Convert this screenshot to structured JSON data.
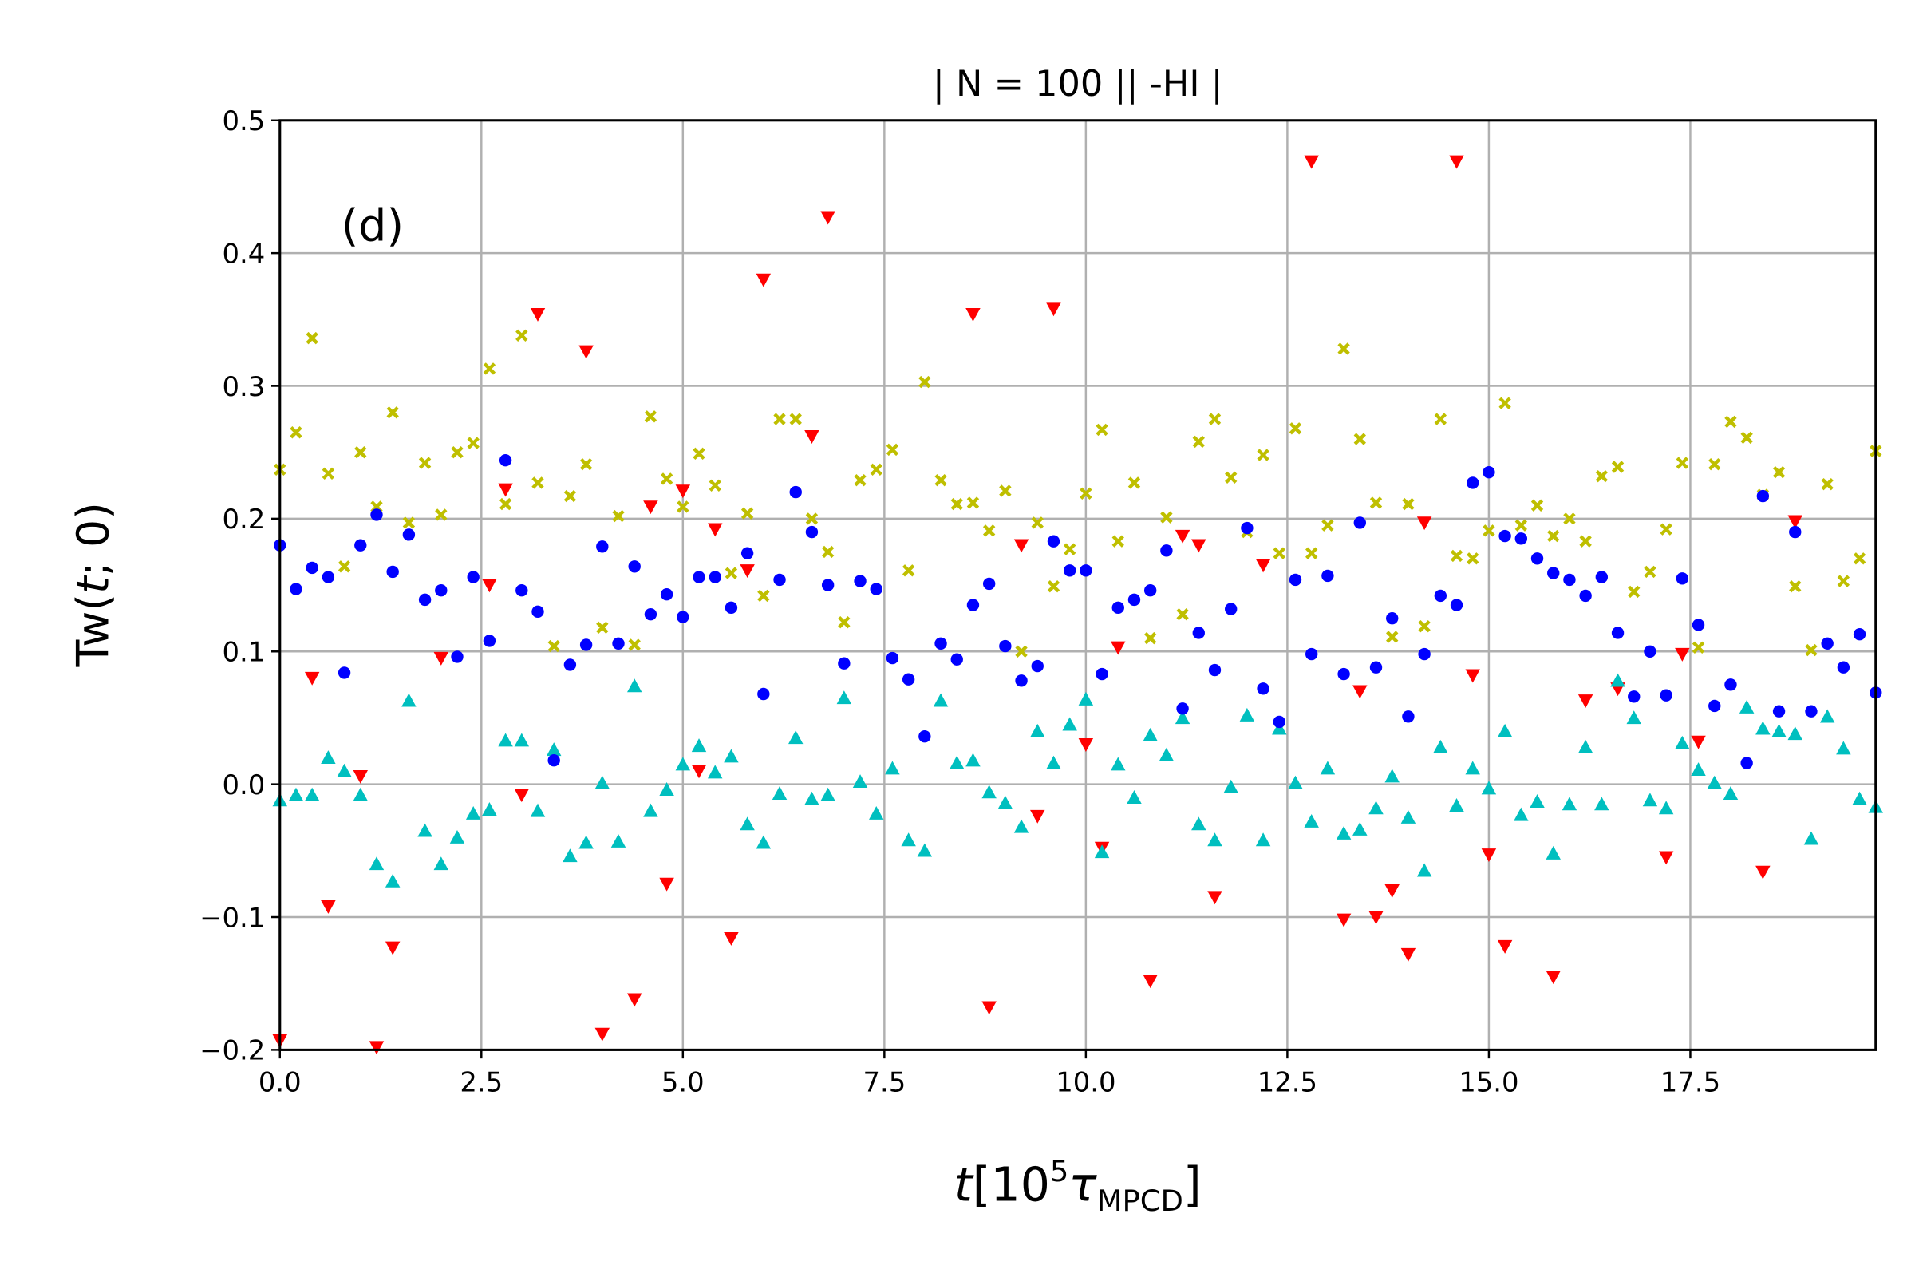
{
  "chart_data": {
    "type": "scatter",
    "title": "| N = 100 || -HI |",
    "annotation": "(d)",
    "xlabel": [
      "t",
      "[10",
      "5",
      "τ",
      "MPCD",
      "]"
    ],
    "ylabel": [
      "Tw(",
      "t",
      "; 0)"
    ],
    "xlim": [
      0,
      19.8
    ],
    "ylim": [
      -0.2,
      0.5
    ],
    "xticks": [
      {
        "value": 0,
        "label": "0.0"
      },
      2.5,
      {
        "value": 5,
        "label": "5.0"
      },
      7.5,
      {
        "value": 10,
        "label": "10.0"
      },
      12.5,
      {
        "value": 15,
        "label": "15.0"
      },
      17.5
    ],
    "yticks": [
      {
        "value": -0.2,
        "label": "−0.2"
      },
      {
        "value": -0.1,
        "label": "−0.1"
      },
      {
        "value": 0,
        "label": "0.0"
      },
      0.1,
      0.2,
      0.3,
      0.4,
      0.5
    ],
    "grid": true,
    "x": [
      0,
      0.2,
      0.4,
      0.6,
      0.8,
      1,
      1.2,
      1.4,
      1.6,
      1.8,
      2,
      2.2,
      2.4,
      2.6,
      2.8,
      3,
      3.2,
      3.4,
      3.6,
      3.8,
      4,
      4.2,
      4.4,
      4.6,
      4.8,
      5,
      5.2,
      5.4,
      5.6,
      5.8,
      6,
      6.2,
      6.4,
      6.6,
      6.8,
      7,
      7.2,
      7.4,
      7.6,
      7.8,
      8,
      8.2,
      8.4,
      8.6,
      8.8,
      9,
      9.2,
      9.4,
      9.6,
      9.8,
      10,
      10.2,
      10.4,
      10.6,
      10.8,
      11,
      11.2,
      11.4,
      11.6,
      11.8,
      12,
      12.2,
      12.4,
      12.6,
      12.8,
      13,
      13.2,
      13.4,
      13.6,
      13.8,
      14,
      14.2,
      14.4,
      14.6,
      14.8,
      15,
      15.2,
      15.4,
      15.6,
      15.8,
      16,
      16.2,
      16.4,
      16.6,
      16.8,
      17,
      17.2,
      17.4,
      17.6,
      17.8,
      18,
      18.2,
      18.4,
      18.6,
      18.8,
      19,
      19.2,
      19.4,
      19.6,
      19.8
    ],
    "series": [
      {
        "color": "#bfbf00",
        "marker": "X",
        "values": [
          0.237,
          0.265,
          0.336,
          0.234,
          0.164,
          0.25,
          0.209,
          0.28,
          0.197,
          0.242,
          0.203,
          0.25,
          0.257,
          0.313,
          0.211,
          0.338,
          0.227,
          0.104,
          0.217,
          0.241,
          0.118,
          0.202,
          0.105,
          0.277,
          0.23,
          0.209,
          0.249,
          0.225,
          0.159,
          0.204,
          0.142,
          0.275,
          0.275,
          0.2,
          0.175,
          0.122,
          0.229,
          0.237,
          0.252,
          0.161,
          0.303,
          0.229,
          0.211,
          0.212,
          0.191,
          0.221,
          0.1,
          0.197,
          0.149,
          0.177,
          0.219,
          0.267,
          0.183,
          0.227,
          0.11,
          0.201,
          0.128,
          0.258,
          0.275,
          0.231,
          0.19,
          0.248,
          0.174,
          0.268,
          0.174,
          0.195,
          0.328,
          0.26,
          0.212,
          0.111,
          0.211,
          0.119,
          0.275,
          0.172,
          0.17,
          0.191,
          0.287,
          0.195,
          0.21,
          0.187,
          0.2,
          0.183,
          0.232,
          0.239,
          0.145,
          0.16,
          0.192,
          0.242,
          0.103,
          0.241,
          0.273,
          0.261,
          0.218,
          0.235,
          0.149,
          0.101,
          0.226,
          0.153,
          0.17,
          0.251
        ]
      },
      {
        "color": "#ff0000",
        "marker": "v",
        "values": [
          -0.193,
          null,
          0.08,
          -0.092,
          null,
          0.006,
          -0.198,
          -0.123,
          null,
          null,
          0.095,
          null,
          null,
          0.15,
          0.222,
          -0.008,
          0.354,
          null,
          null,
          0.326,
          -0.188,
          null,
          -0.162,
          0.209,
          -0.075,
          0.221,
          0.01,
          0.192,
          -0.116,
          0.161,
          0.38,
          null,
          null,
          0.262,
          0.427,
          null,
          null,
          null,
          null,
          null,
          null,
          null,
          null,
          0.354,
          -0.168,
          null,
          0.18,
          -0.024,
          0.358,
          null,
          0.03,
          -0.048,
          0.103,
          null,
          -0.148,
          null,
          0.187,
          0.18,
          -0.085,
          null,
          null,
          0.165,
          null,
          null,
          0.469,
          null,
          -0.102,
          0.07,
          -0.1,
          -0.08,
          -0.128,
          0.197,
          null,
          0.469,
          0.082,
          -0.053,
          -0.122,
          null,
          null,
          -0.145,
          null,
          0.063,
          null,
          0.072,
          null,
          null,
          -0.055,
          0.098,
          0.032,
          null,
          null,
          null,
          -0.066,
          null,
          0.198,
          null,
          null,
          null,
          null,
          null
        ]
      },
      {
        "color": "#00bfbf",
        "marker": "^",
        "values": [
          -0.012,
          -0.008,
          -0.008,
          0.02,
          0.01,
          -0.008,
          -0.06,
          -0.073,
          0.063,
          -0.035,
          -0.06,
          -0.04,
          -0.022,
          -0.019,
          0.033,
          0.033,
          -0.02,
          0.026,
          -0.054,
          -0.044,
          0.001,
          -0.043,
          0.074,
          -0.02,
          -0.004,
          0.015,
          0.029,
          0.009,
          0.021,
          -0.03,
          -0.044,
          -0.007,
          0.035,
          -0.011,
          -0.008,
          0.065,
          0.002,
          -0.022,
          0.012,
          -0.042,
          -0.05,
          0.063,
          0.016,
          0.018,
          -0.006,
          -0.014,
          -0.032,
          0.04,
          0.016,
          0.045,
          0.064,
          -0.051,
          0.015,
          -0.01,
          0.037,
          0.022,
          0.05,
          -0.03,
          -0.042,
          -0.002,
          0.052,
          -0.042,
          0.042,
          0.001,
          -0.028,
          0.012,
          -0.037,
          -0.034,
          -0.018,
          0.006,
          -0.025,
          -0.065,
          0.028,
          -0.016,
          0.012,
          -0.003,
          0.04,
          -0.023,
          -0.013,
          -0.052,
          -0.015,
          0.028,
          -0.015,
          0.078,
          0.05,
          -0.012,
          -0.018,
          0.031,
          0.011,
          0.001,
          -0.007,
          0.058,
          0.042,
          0.04,
          0.038,
          -0.041,
          0.051,
          0.027,
          -0.011,
          -0.017
        ]
      },
      {
        "color": "#0000ff",
        "marker": "o",
        "values": [
          0.18,
          0.147,
          0.163,
          0.156,
          0.084,
          0.18,
          0.203,
          0.16,
          0.188,
          0.139,
          0.146,
          0.096,
          0.156,
          0.108,
          0.244,
          0.146,
          0.13,
          0.018,
          0.09,
          0.105,
          0.179,
          0.106,
          0.164,
          0.128,
          0.143,
          0.126,
          0.156,
          0.156,
          0.133,
          0.174,
          0.068,
          0.154,
          0.22,
          0.19,
          0.15,
          0.091,
          0.153,
          0.147,
          0.095,
          0.079,
          0.036,
          0.106,
          0.094,
          0.135,
          0.151,
          0.104,
          0.078,
          0.089,
          0.183,
          0.161,
          0.161,
          0.083,
          0.133,
          0.139,
          0.146,
          0.176,
          0.057,
          0.114,
          0.086,
          0.132,
          0.193,
          0.072,
          0.047,
          0.154,
          0.098,
          0.157,
          0.083,
          0.197,
          0.088,
          0.125,
          0.051,
          0.098,
          0.142,
          0.135,
          0.227,
          0.235,
          0.187,
          0.185,
          0.17,
          0.159,
          0.154,
          0.142,
          0.156,
          0.114,
          0.066,
          0.1,
          0.067,
          0.155,
          0.12,
          0.059,
          0.075,
          0.016,
          0.217,
          0.055,
          0.19,
          0.055,
          0.106,
          0.088,
          0.113,
          0.069
        ]
      }
    ]
  }
}
